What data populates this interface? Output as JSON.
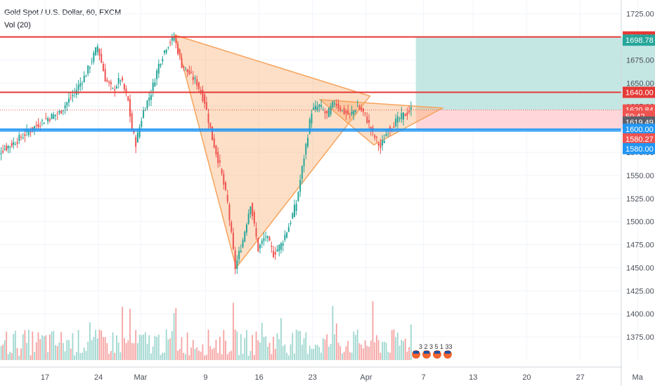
{
  "header": {
    "symbol": "Gold Spot / U.S. Dollar, 60, FXCM",
    "indicator": "Vol (20)"
  },
  "colors": {
    "up": "#26a69a",
    "down": "#ef5350",
    "red_line": "#e53935",
    "blue_line": "#2196f3",
    "triangle": "#f7a35c",
    "target_zone": "#b2dfdb",
    "stop_zone": "#ffcdd2",
    "axis_text": "#4a4f5a"
  },
  "chart_data": {
    "type": "candlestick",
    "y_axis": {
      "range": [
        1350,
        1740
      ],
      "ticks": [
        1375,
        1400,
        1425,
        1450,
        1475,
        1500,
        1525,
        1550,
        1575,
        1600,
        1625,
        1650,
        1675,
        1700,
        1725
      ],
      "tick_labels": [
        "1375.00",
        "1400.00",
        "1425.00",
        "1450.00",
        "1475.00",
        "1500.00",
        "1525.00",
        "1550.00",
        "1575.00",
        "1600.00",
        "1625.00",
        "1650.00",
        "1675.00",
        "1700.00",
        "1725.00"
      ]
    },
    "x_axis": {
      "labels": [
        "17",
        "24",
        "Mar",
        "9",
        "16",
        "23",
        "Apr",
        "7",
        "13",
        "20",
        "27",
        "Ma"
      ]
    },
    "price_path": [
      {
        "d": 10,
        "p": 1570
      },
      {
        "d": 13,
        "p": 1585
      },
      {
        "d": 15,
        "p": 1598
      },
      {
        "d": 17,
        "p": 1610
      },
      {
        "d": 19,
        "p": 1618
      },
      {
        "d": 21,
        "p": 1640
      },
      {
        "d": 22.5,
        "p": 1660
      },
      {
        "d": 24,
        "p": 1690
      },
      {
        "d": 25,
        "p": 1655
      },
      {
        "d": 26,
        "p": 1642
      },
      {
        "d": 27,
        "p": 1655
      },
      {
        "d": 28,
        "p": 1630
      },
      {
        "d": 28.5,
        "p": 1600
      },
      {
        "d": 29,
        "p": 1585
      },
      {
        "d": 30,
        "p": 1620
      },
      {
        "d": 31,
        "p": 1640
      },
      {
        "d": 32,
        "p": 1670
      },
      {
        "d": 33,
        "p": 1690
      },
      {
        "d": 34,
        "p": 1700
      },
      {
        "d": 35,
        "p": 1670
      },
      {
        "d": 36,
        "p": 1660
      },
      {
        "d": 37,
        "p": 1650
      },
      {
        "d": 38,
        "p": 1630
      },
      {
        "d": 39,
        "p": 1590
      },
      {
        "d": 40,
        "p": 1560
      },
      {
        "d": 41,
        "p": 1520
      },
      {
        "d": 42,
        "p": 1450
      },
      {
        "d": 43,
        "p": 1480
      },
      {
        "d": 44,
        "p": 1520
      },
      {
        "d": 45,
        "p": 1470
      },
      {
        "d": 46,
        "p": 1485
      },
      {
        "d": 47,
        "p": 1465
      },
      {
        "d": 48,
        "p": 1475
      },
      {
        "d": 49,
        "p": 1495
      },
      {
        "d": 50,
        "p": 1520
      },
      {
        "d": 51,
        "p": 1570
      },
      {
        "d": 52,
        "p": 1620
      },
      {
        "d": 53,
        "p": 1625
      },
      {
        "d": 54,
        "p": 1615
      },
      {
        "d": 55,
        "p": 1630
      },
      {
        "d": 56,
        "p": 1620
      },
      {
        "d": 57,
        "p": 1615
      },
      {
        "d": 58,
        "p": 1625
      },
      {
        "d": 59,
        "p": 1615
      },
      {
        "d": 60,
        "p": 1595
      },
      {
        "d": 61,
        "p": 1580
      },
      {
        "d": 62,
        "p": 1600
      },
      {
        "d": 63,
        "p": 1608
      },
      {
        "d": 64,
        "p": 1615
      },
      {
        "d": 65,
        "p": 1621
      }
    ],
    "horizontal_lines": [
      {
        "price": 1700.0,
        "kind": "red"
      },
      {
        "price": 1640.0,
        "kind": "red"
      },
      {
        "price": 1600.0,
        "kind": "blue"
      },
      {
        "price": 1620.84,
        "kind": "dotted"
      },
      {
        "price": 1619.49,
        "kind": "blue",
        "x_start_day": null
      }
    ],
    "triangles": [
      {
        "points": [
          {
            "d": 34,
            "p": 1702
          },
          {
            "d": 42,
            "p": 1450
          },
          {
            "d": 59.5,
            "p": 1636
          }
        ]
      },
      {
        "points": [
          {
            "d": 53,
            "p": 1632
          },
          {
            "d": 60,
            "p": 1583
          },
          {
            "d": 69,
            "p": 1623
          }
        ]
      }
    ],
    "target_zone": {
      "d_start": 65.5,
      "d_end": 98.5,
      "p_top": 1700,
      "p_bottom": 1620.84
    },
    "stop_zone": {
      "d_start": 65.5,
      "d_end": 98.5,
      "p_top": 1620.84,
      "p_bottom": 1600
    }
  },
  "price_labels": [
    {
      "text": "1700.00",
      "price": 1700.0,
      "color": "#e53935"
    },
    {
      "text": "1698.78",
      "price": 1696.5,
      "color": "#26a69a"
    },
    {
      "text": "1640.00",
      "price": 1640.0,
      "color": "#e53935"
    },
    {
      "text": "1620.84",
      "price": 1620.84,
      "color": "#ef5350"
    },
    {
      "text": "50:42",
      "price": 1614.2,
      "color": "#ef5350"
    },
    {
      "text": "1619.49",
      "price": 1607.8,
      "color": "#5d606b"
    },
    {
      "text": "1600.00",
      "price": 1600.0,
      "color": "#2196f3"
    },
    {
      "text": "1580.27",
      "price": 1589.5,
      "color": "#ef5350"
    },
    {
      "text": "1580.00",
      "price": 1579.0,
      "color": "#2196f3"
    }
  ],
  "events": {
    "label": "3 2 3   5 1 33"
  }
}
